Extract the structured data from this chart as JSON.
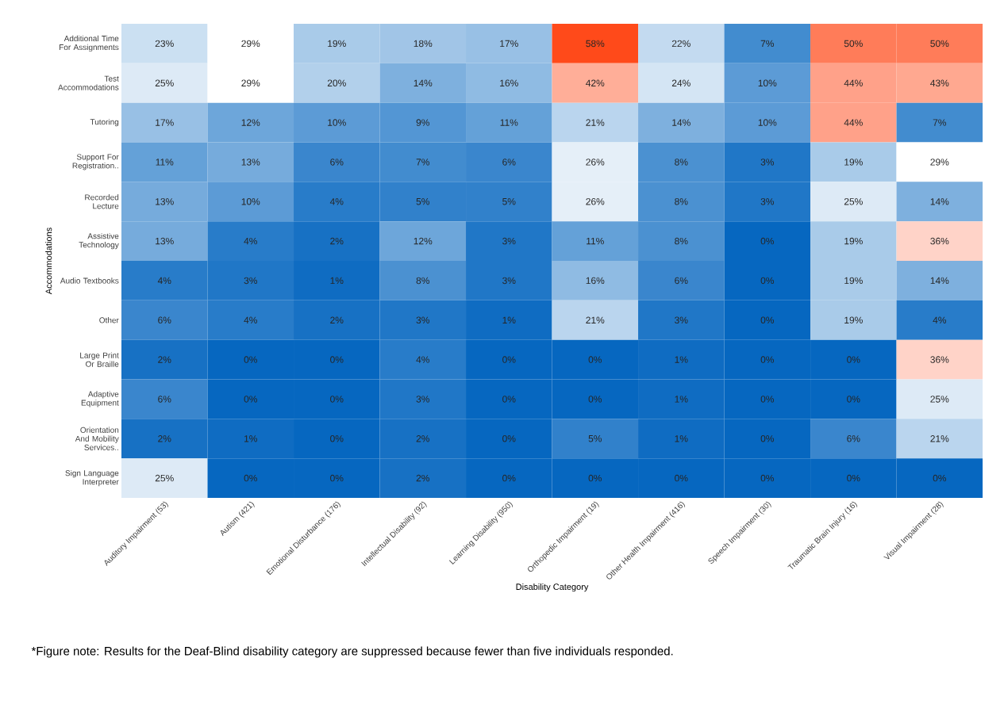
{
  "chart_data": {
    "type": "heatmap",
    "xlabel": "Disability Category",
    "ylabel": "Accommodations",
    "categories": [
      "Auditory Impairment (53)",
      "Autism (421)",
      "Emotional Disturbance (176)",
      "Intellectual Disability (92)",
      "Learning Disability (950)",
      "Orthopedic Impairment (19)",
      "Other Health Impairment (416)",
      "Speech Impairment (30)",
      "Traumatic Brain Injury (16)",
      "Visual Impairment (28)"
    ],
    "y_categories": [
      "Additional Time For Assignments",
      "Test Accommodations",
      "Tutoring",
      "Support For Registration..",
      "Recorded Lecture",
      "Assistive Technology",
      "Audio Textbooks",
      "Other",
      "Large Print Or Braille",
      "Adaptive Equipment",
      "Orientation And Mobility Services..",
      "Sign Language Interpreter"
    ],
    "cells": [
      [
        23,
        29,
        19,
        18,
        17,
        58,
        22,
        7,
        50,
        50
      ],
      [
        25,
        29,
        20,
        14,
        16,
        42,
        24,
        10,
        44,
        43
      ],
      [
        17,
        12,
        10,
        9,
        11,
        21,
        14,
        10,
        44,
        7
      ],
      [
        11,
        13,
        6,
        7,
        6,
        26,
        8,
        3,
        19,
        29
      ],
      [
        13,
        10,
        4,
        5,
        5,
        26,
        8,
        3,
        25,
        14
      ],
      [
        13,
        4,
        2,
        12,
        3,
        11,
        8,
        0,
        19,
        36
      ],
      [
        4,
        3,
        1,
        8,
        3,
        16,
        6,
        0,
        19,
        14
      ],
      [
        6,
        4,
        2,
        3,
        1,
        21,
        3,
        0,
        19,
        4
      ],
      [
        2,
        0,
        0,
        4,
        0,
        0,
        1,
        0,
        0,
        36
      ],
      [
        6,
        0,
        0,
        3,
        0,
        0,
        1,
        0,
        0,
        25
      ],
      [
        2,
        1,
        0,
        2,
        0,
        5,
        1,
        0,
        6,
        21
      ],
      [
        25,
        0,
        0,
        2,
        0,
        0,
        0,
        0,
        0,
        0
      ]
    ],
    "cell_labels": [
      [
        "23%",
        "29%",
        "19%",
        "18%",
        "17%",
        "58%",
        "22%",
        "7%",
        "50%",
        "50%"
      ],
      [
        "25%",
        "29%",
        "20%",
        "14%",
        "16%",
        "42%",
        "24%",
        "10%",
        "44%",
        "43%"
      ],
      [
        "17%",
        "12%",
        "10%",
        "9%",
        "11%",
        "21%",
        "14%",
        "10%",
        "44%",
        "7%"
      ],
      [
        "11%",
        "13%",
        "6%",
        "7%",
        "6%",
        "26%",
        "8%",
        "3%",
        "19%",
        "29%"
      ],
      [
        "13%",
        "10%",
        "4%",
        "5%",
        "5%",
        "26%",
        "8%",
        "3%",
        "25%",
        "14%"
      ],
      [
        "13%",
        "4%",
        "2%",
        "12%",
        "3%",
        "11%",
        "8%",
        "0%",
        "19%",
        "36%"
      ],
      [
        "4%",
        "3%",
        "1%",
        "8%",
        "3%",
        "16%",
        "6%",
        "0%",
        "19%",
        "14%"
      ],
      [
        "6%",
        "4%",
        "2%",
        "3%",
        "1%",
        "21%",
        "3%",
        "0%",
        "19%",
        "4%"
      ],
      [
        "2%",
        "0%",
        "0%",
        "4%",
        "0%",
        "0%",
        "1%",
        "0%",
        "0%",
        "36%"
      ],
      [
        "6%",
        "0%",
        "0%",
        "3%",
        "0%",
        "0%",
        "1%",
        "0%",
        "0%",
        "25%"
      ],
      [
        "2%",
        "1%",
        "0%",
        "2%",
        "0%",
        "5%",
        "1%",
        "0%",
        "6%",
        "21%"
      ],
      [
        "25%",
        "0%",
        "0%",
        "2%",
        "0%",
        "0%",
        "0%",
        "0%",
        "0%",
        "0%"
      ]
    ],
    "annotations": [
      "*Figure note: Results for the Deaf-Blind disability category are suppressed because fewer than five individuals responded."
    ]
  }
}
